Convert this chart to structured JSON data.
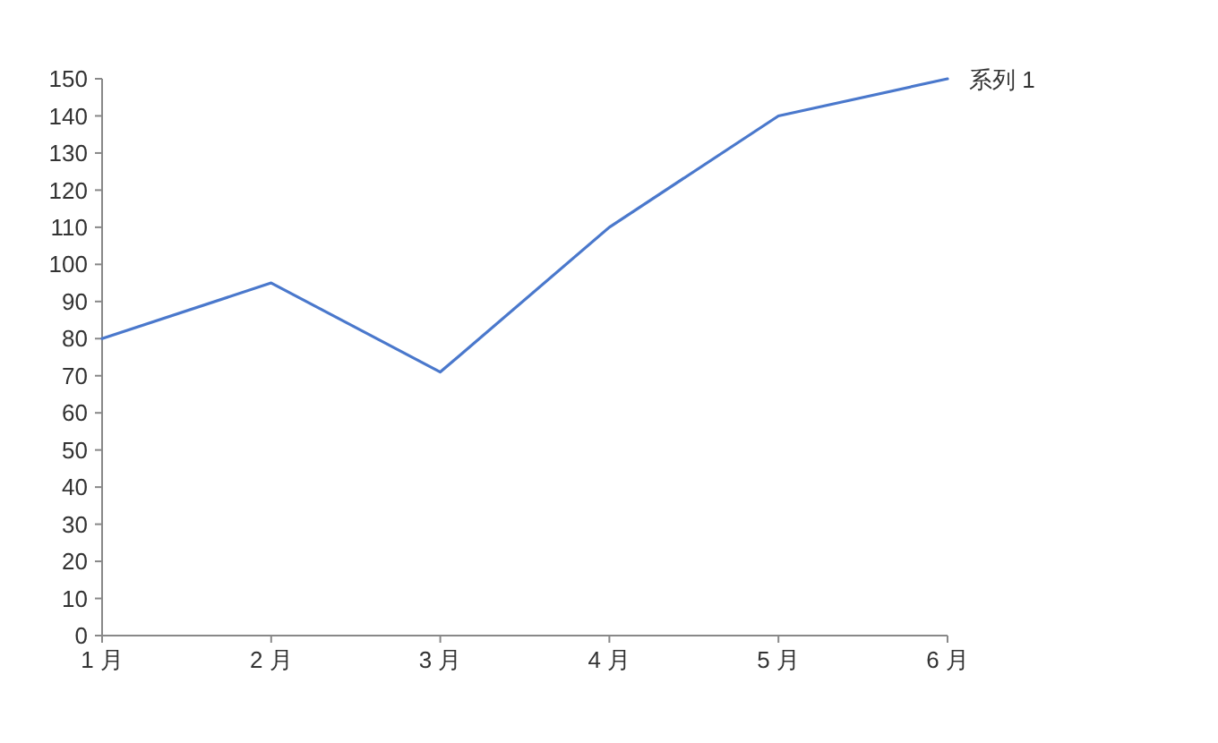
{
  "chart_data": {
    "type": "line",
    "categories": [
      "1 月",
      "2 月",
      "3 月",
      "4 月",
      "5 月",
      "6 月"
    ],
    "series": [
      {
        "name": "系列 1",
        "color": "#4a78cc",
        "values": [
          80,
          95,
          71,
          110,
          140,
          150
        ]
      }
    ],
    "ylim": [
      0,
      150
    ],
    "yticks": [
      0,
      10,
      20,
      30,
      40,
      50,
      60,
      70,
      80,
      90,
      100,
      110,
      120,
      130,
      140,
      150
    ],
    "grid": false,
    "marker": "none"
  }
}
